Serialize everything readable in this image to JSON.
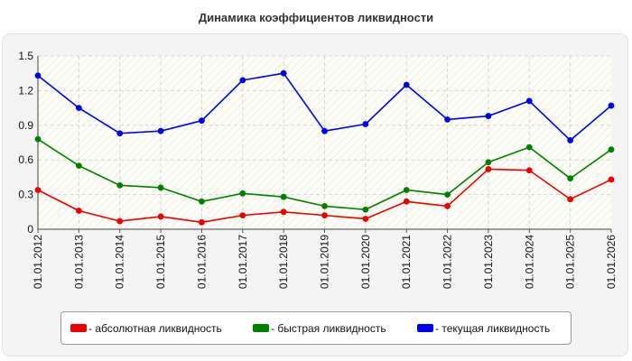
{
  "title": "Динамика коэффициентов ликвидности",
  "chart_data": {
    "type": "line",
    "title": "Динамика коэффициентов ликвидности",
    "xlabel": "",
    "ylabel": "",
    "categories": [
      "01.01.2012",
      "01.01.2013",
      "01.01.2014",
      "01.01.2015",
      "01.01.2016",
      "01.01.2017",
      "01.01.2018",
      "01.01.2019",
      "01.01.2020",
      "01.01.2021",
      "01.01.2022",
      "01.01.2023",
      "01.01.2024",
      "01.01.2025",
      "01.01.2026"
    ],
    "ylim": [
      0,
      1.5
    ],
    "yticks": [
      "0",
      "0.3",
      "0.6",
      "0.9",
      "1.2",
      "1.5"
    ],
    "grid": true,
    "legend_position": "bottom",
    "series": [
      {
        "name": "- абсолютная ликвидность",
        "color": "#ee0000",
        "values": [
          0.34,
          0.16,
          0.07,
          0.11,
          0.06,
          0.12,
          0.15,
          0.12,
          0.09,
          0.24,
          0.2,
          0.52,
          0.51,
          0.26,
          0.43
        ]
      },
      {
        "name": "- быстрая ликвидность",
        "color": "#008000",
        "values": [
          0.78,
          0.55,
          0.38,
          0.36,
          0.24,
          0.31,
          0.28,
          0.2,
          0.17,
          0.34,
          0.3,
          0.58,
          0.71,
          0.44,
          0.69
        ]
      },
      {
        "name": "- текущая ликвидность",
        "color": "#0000ee",
        "values": [
          1.33,
          1.05,
          0.83,
          0.85,
          0.94,
          1.29,
          1.35,
          0.85,
          0.91,
          1.25,
          0.95,
          0.98,
          1.11,
          0.77,
          1.07
        ]
      }
    ]
  }
}
